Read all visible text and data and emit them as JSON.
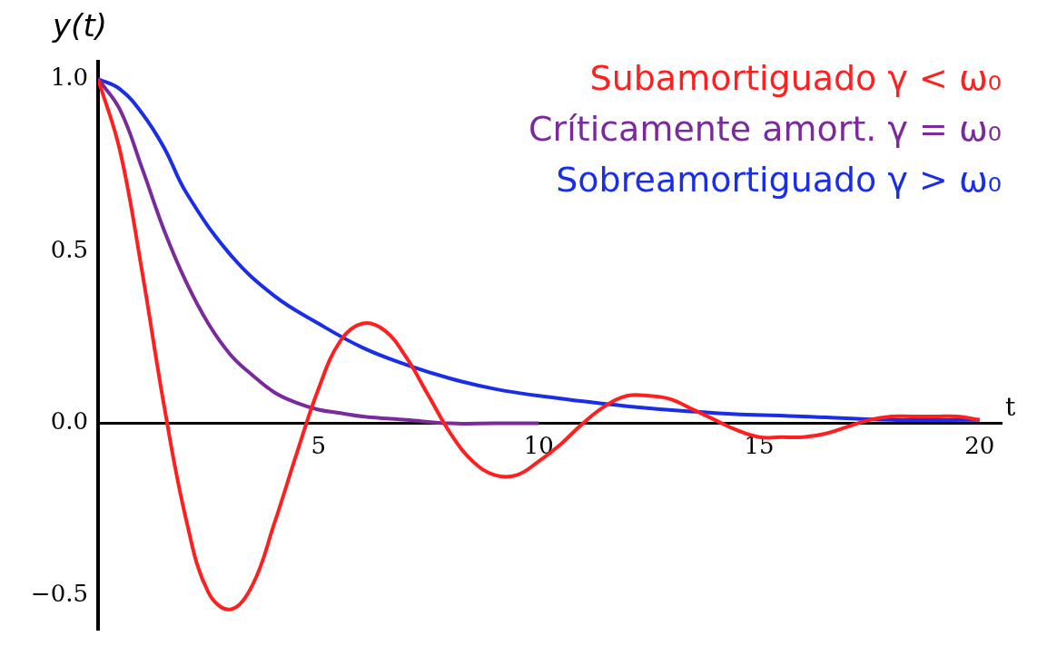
{
  "chart_data": {
    "type": "line",
    "xlabel": "t",
    "ylabel": "y(t)",
    "xlim": [
      0,
      20.5
    ],
    "ylim": [
      -0.6,
      1.05
    ],
    "xticks": [
      5,
      10,
      15,
      20
    ],
    "yticks": [
      {
        "value": -0.5,
        "label": "−0.5"
      },
      {
        "value": 0,
        "label": "0.0"
      },
      {
        "value": 0.5,
        "label": "0.5"
      },
      {
        "value": 1,
        "label": "1.0"
      }
    ],
    "grid": false,
    "legend": "top right",
    "marker": "none",
    "line_style": "solid",
    "series": [
      {
        "name": "Subamortiguado γ < ω₀",
        "color": "#ff1f1f",
        "x": [
          0,
          0.5,
          1,
          1.5,
          2,
          2.5,
          3,
          3.5,
          4,
          4.5,
          5,
          5.5,
          6,
          6.5,
          7,
          7.5,
          8,
          8.5,
          9,
          9.5,
          10,
          10.5,
          11,
          11.5,
          12,
          12.5,
          13,
          13.5,
          14,
          14.5,
          15,
          15.5,
          16,
          16.5,
          17,
          17.5,
          18,
          18.5,
          19,
          19.5,
          20
        ],
        "values": [
          1,
          0.79,
          0.44,
          0.05,
          -0.28,
          -0.49,
          -0.54,
          -0.47,
          -0.29,
          -0.09,
          0.1,
          0.24,
          0.29,
          0.27,
          0.19,
          0.08,
          -0.03,
          -0.11,
          -0.15,
          -0.15,
          -0.11,
          -0.06,
          0,
          0.05,
          0.08,
          0.08,
          0.07,
          0.04,
          0.01,
          -0.02,
          -0.04,
          -0.04,
          -0.04,
          -0.03,
          -0.01,
          0.01,
          0.02,
          0.02,
          0.02,
          0.02,
          0.01
        ]
      },
      {
        "name": "Críticamente amort. γ = ω₀",
        "color": "#7a2a9a",
        "x": [
          0,
          0.5,
          1,
          1.5,
          2,
          2.5,
          3,
          3.5,
          4,
          4.5,
          5,
          5.5,
          6,
          7,
          8,
          9,
          10
        ],
        "values": [
          1,
          0.91,
          0.74,
          0.56,
          0.41,
          0.29,
          0.2,
          0.14,
          0.09,
          0.06,
          0.04,
          0.03,
          0.02,
          0.01,
          0,
          0,
          0
        ]
      },
      {
        "name": "Sobreamortiguado γ > ω₀",
        "color": "#1a2ee8",
        "x": [
          0,
          0.5,
          1,
          1.5,
          2,
          3,
          4,
          5,
          6,
          7,
          8,
          9,
          10,
          12,
          14,
          16,
          18,
          20
        ],
        "values": [
          1,
          0.97,
          0.9,
          0.8,
          0.67,
          0.49,
          0.37,
          0.29,
          0.22,
          0.17,
          0.13,
          0.1,
          0.08,
          0.05,
          0.03,
          0.02,
          0.01,
          0.01
        ]
      }
    ]
  }
}
